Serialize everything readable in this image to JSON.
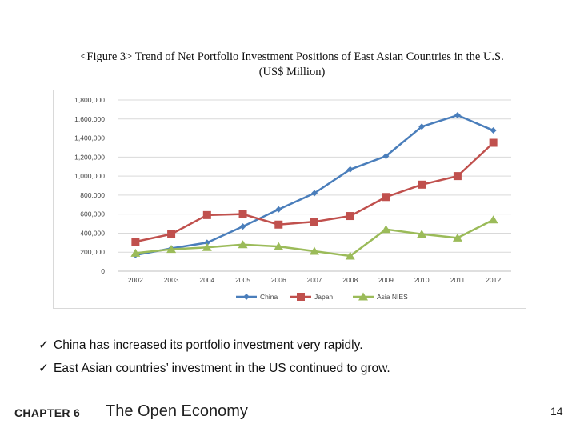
{
  "figure": {
    "title_line1": "<Figure 3> Trend of Net Portfolio Investment Positions of East Asian Countries in the U.S.",
    "title_line2": "(US$ Million)"
  },
  "chart_data": {
    "type": "line",
    "title": "<Figure 3> Trend of Net Portfolio Investment Positions of East Asian Countries in the U.S.",
    "subtitle": "(US$ Million)",
    "xlabel": "",
    "ylabel": "",
    "ylim": [
      0,
      1800000
    ],
    "y_ticks": [
      0,
      200000,
      400000,
      600000,
      800000,
      1000000,
      1200000,
      1400000,
      1600000,
      1800000
    ],
    "y_tick_labels": [
      "0",
      "200,000",
      "400,000",
      "600,000",
      "800,000",
      "1,000,000",
      "1,200,000",
      "1,400,000",
      "1,600,000",
      "1,800,000"
    ],
    "categories": [
      "2002",
      "2003",
      "2004",
      "2005",
      "2006",
      "2007",
      "2008",
      "2009",
      "2010",
      "2011",
      "2012"
    ],
    "grid": true,
    "legend_position": "bottom",
    "series": [
      {
        "name": "China",
        "color": "#4a7ebb",
        "marker": "diamond",
        "values": [
          170000,
          240000,
          300000,
          470000,
          650000,
          820000,
          1070000,
          1210000,
          1520000,
          1640000,
          1480000
        ]
      },
      {
        "name": "Japan",
        "color": "#c0504d",
        "marker": "square",
        "values": [
          310000,
          390000,
          590000,
          600000,
          490000,
          520000,
          580000,
          780000,
          910000,
          1000000,
          1350000
        ]
      },
      {
        "name": "Asia NIES",
        "color": "#9bbb59",
        "marker": "triangle",
        "values": [
          190000,
          230000,
          250000,
          280000,
          260000,
          210000,
          160000,
          440000,
          390000,
          350000,
          540000
        ]
      }
    ]
  },
  "bullets": [
    {
      "check": "ü",
      "text": "China has increased its portfolio investment very rapidly."
    },
    {
      "check": "ü",
      "text": "East Asian countries’ investment in the US continued to grow."
    }
  ],
  "footer": {
    "chapter": "CHAPTER 6",
    "title": "The Open Economy",
    "page": "14"
  }
}
